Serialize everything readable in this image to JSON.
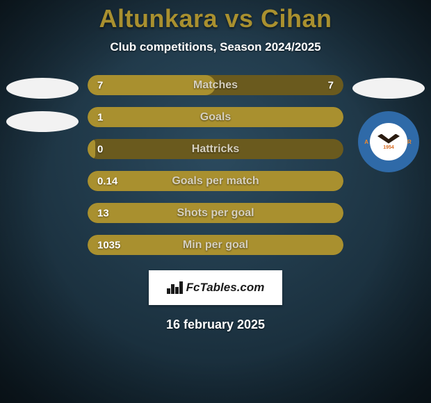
{
  "background": {
    "top_color": "#2b4a5e",
    "bottom_color": "#12232e",
    "vignette": "rgba(0,0,0,0.55)"
  },
  "title": {
    "text": "Altunkara vs Cihan",
    "color": "#a9902f",
    "fontsize": 36
  },
  "subtitle": {
    "text": "Club competitions, Season 2024/2025",
    "color": "#ffffff",
    "fontsize": 17
  },
  "left_badges": {
    "oval_color": "#f2f2f2",
    "count": 2
  },
  "right_badges": {
    "oval_color": "#f2f2f2",
    "club": {
      "outer_color": "#2f6aa8",
      "ring_text_top": "ADANASPOR",
      "ring_text_bottom": "ADANA",
      "ring_text_color": "#f08a2c",
      "inner_bg": "#ffffff",
      "year": "1954",
      "year_color": "#d86a1e",
      "eagle_color": "#2a1b0f"
    }
  },
  "stats": {
    "track_color": "#6a5a1e",
    "fill_color": "#a9902f",
    "label_color": "#d6d0bf",
    "value_color": "#ffffff",
    "rows": [
      {
        "left": "7",
        "label": "Matches",
        "right": "7",
        "fill_pct": 50
      },
      {
        "left": "1",
        "label": "Goals",
        "right": "",
        "fill_pct": 100
      },
      {
        "left": "0",
        "label": "Hattricks",
        "right": "",
        "fill_pct": 3
      },
      {
        "left": "0.14",
        "label": "Goals per match",
        "right": "",
        "fill_pct": 100
      },
      {
        "left": "13",
        "label": "Shots per goal",
        "right": "",
        "fill_pct": 100
      },
      {
        "left": "1035",
        "label": "Min per goal",
        "right": "",
        "fill_pct": 100
      }
    ]
  },
  "brand": {
    "text": "FcTables.com",
    "bg": "#ffffff",
    "text_color": "#1a1a1a"
  },
  "date": {
    "text": "16 february 2025",
    "color": "#ffffff"
  }
}
